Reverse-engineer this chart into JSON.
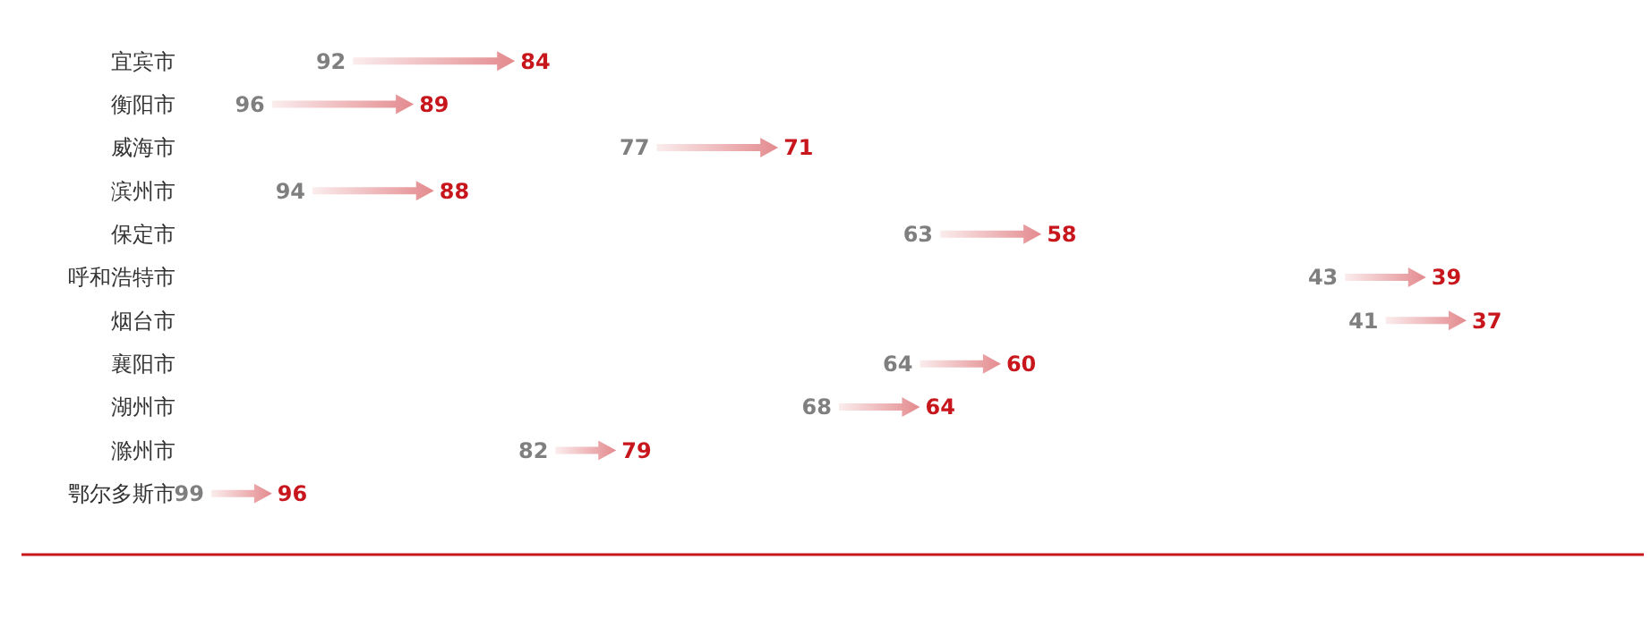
{
  "chart_data": {
    "type": "other",
    "categories": [
      "宜宾市",
      "衡阳市",
      "威海市",
      "滨州市",
      "保定市",
      "呼和浩特市",
      "烟台市",
      "襄阳市",
      "湖州市",
      "滁州市",
      "鄂尔多斯市"
    ],
    "series": [
      {
        "color": "#7f7f7f",
        "values": [
          92,
          96,
          77,
          94,
          63,
          43,
          41,
          64,
          68,
          82,
          99
        ]
      },
      {
        "color": "#c8161d",
        "values": [
          84,
          89,
          71,
          88,
          58,
          39,
          37,
          60,
          64,
          79,
          96
        ]
      }
    ],
    "data_labels": true
  }
}
